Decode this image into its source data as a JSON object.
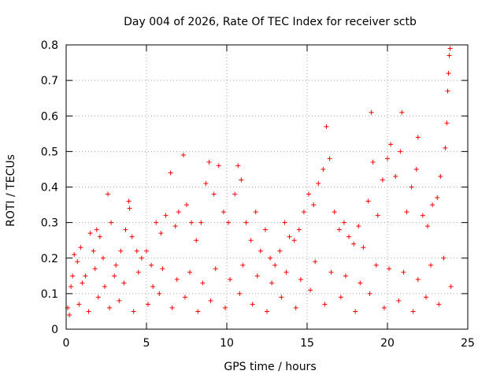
{
  "chart_data": {
    "type": "scatter",
    "title": "Day 004 of 2026, Rate Of TEC Index for receiver sctb",
    "xlabel": "GPS time / hours",
    "ylabel": "ROTI / TECUs",
    "xlim": [
      0,
      25
    ],
    "ylim": [
      0,
      0.8
    ],
    "xticks": [
      "0",
      "5",
      "10",
      "15",
      "20",
      "25"
    ],
    "yticks": [
      "0",
      "0.1",
      "0.2",
      "0.3",
      "0.4",
      "0.5",
      "0.6",
      "0.7",
      "0.8"
    ],
    "grid": true,
    "marker": "+",
    "color": "#ff0000",
    "series": [
      {
        "points": [
          [
            0.1,
            0.06
          ],
          [
            0.3,
            0.12
          ],
          [
            0.5,
            0.21
          ],
          [
            0.7,
            0.19
          ],
          [
            0.9,
            0.23
          ],
          [
            1.2,
            0.15
          ],
          [
            1.5,
            0.27
          ],
          [
            1.7,
            0.22
          ],
          [
            1.9,
            0.28
          ],
          [
            2.1,
            0.26
          ],
          [
            2.3,
            0.2
          ],
          [
            2.6,
            0.38
          ],
          [
            2.8,
            0.3
          ],
          [
            3.1,
            0.18
          ],
          [
            3.4,
            0.22
          ],
          [
            3.7,
            0.28
          ],
          [
            3.9,
            0.36
          ],
          [
            3.95,
            0.34
          ],
          [
            4.1,
            0.26
          ],
          [
            4.4,
            0.22
          ],
          [
            4.7,
            0.2
          ],
          [
            5.0,
            0.22
          ],
          [
            5.3,
            0.18
          ],
          [
            5.6,
            0.3
          ],
          [
            5.9,
            0.27
          ],
          [
            6.2,
            0.32
          ],
          [
            6.5,
            0.44
          ],
          [
            6.8,
            0.29
          ],
          [
            7.0,
            0.33
          ],
          [
            7.3,
            0.49
          ],
          [
            7.5,
            0.35
          ],
          [
            7.8,
            0.3
          ],
          [
            8.1,
            0.25
          ],
          [
            8.4,
            0.3
          ],
          [
            8.7,
            0.41
          ],
          [
            8.9,
            0.47
          ],
          [
            9.2,
            0.38
          ],
          [
            9.5,
            0.46
          ],
          [
            9.8,
            0.33
          ],
          [
            10.1,
            0.3
          ],
          [
            10.5,
            0.38
          ],
          [
            10.7,
            0.46
          ],
          [
            10.9,
            0.42
          ],
          [
            11.2,
            0.3
          ],
          [
            11.5,
            0.25
          ],
          [
            11.8,
            0.33
          ],
          [
            12.1,
            0.22
          ],
          [
            12.4,
            0.28
          ],
          [
            12.7,
            0.2
          ],
          [
            13.0,
            0.18
          ],
          [
            13.3,
            0.22
          ],
          [
            13.6,
            0.3
          ],
          [
            13.9,
            0.26
          ],
          [
            14.2,
            0.25
          ],
          [
            14.5,
            0.28
          ],
          [
            14.8,
            0.33
          ],
          [
            15.1,
            0.38
          ],
          [
            15.4,
            0.35
          ],
          [
            15.7,
            0.41
          ],
          [
            16.0,
            0.45
          ],
          [
            16.2,
            0.57
          ],
          [
            16.4,
            0.48
          ],
          [
            16.7,
            0.33
          ],
          [
            17.0,
            0.28
          ],
          [
            17.3,
            0.3
          ],
          [
            17.6,
            0.26
          ],
          [
            17.9,
            0.24
          ],
          [
            18.2,
            0.29
          ],
          [
            18.5,
            0.23
          ],
          [
            18.8,
            0.36
          ],
          [
            19.0,
            0.61
          ],
          [
            19.1,
            0.47
          ],
          [
            19.4,
            0.32
          ],
          [
            19.7,
            0.42
          ],
          [
            20.0,
            0.48
          ],
          [
            20.2,
            0.52
          ],
          [
            20.5,
            0.43
          ],
          [
            20.8,
            0.5
          ],
          [
            20.9,
            0.61
          ],
          [
            21.2,
            0.33
          ],
          [
            21.5,
            0.4
          ],
          [
            21.8,
            0.45
          ],
          [
            21.9,
            0.54
          ],
          [
            22.2,
            0.32
          ],
          [
            22.5,
            0.29
          ],
          [
            22.8,
            0.35
          ],
          [
            23.1,
            0.37
          ],
          [
            23.3,
            0.43
          ],
          [
            23.6,
            0.51
          ],
          [
            23.7,
            0.58
          ],
          [
            23.75,
            0.67
          ],
          [
            23.8,
            0.72
          ],
          [
            23.85,
            0.77
          ],
          [
            23.9,
            0.79
          ],
          [
            0.2,
            0.04
          ],
          [
            0.8,
            0.07
          ],
          [
            1.4,
            0.05
          ],
          [
            2.0,
            0.09
          ],
          [
            2.7,
            0.06
          ],
          [
            3.3,
            0.08
          ],
          [
            4.2,
            0.05
          ],
          [
            5.1,
            0.07
          ],
          [
            5.8,
            0.1
          ],
          [
            6.6,
            0.06
          ],
          [
            7.4,
            0.09
          ],
          [
            8.2,
            0.05
          ],
          [
            9.0,
            0.08
          ],
          [
            9.9,
            0.06
          ],
          [
            10.8,
            0.1
          ],
          [
            11.6,
            0.07
          ],
          [
            12.5,
            0.05
          ],
          [
            13.4,
            0.09
          ],
          [
            14.3,
            0.06
          ],
          [
            15.2,
            0.11
          ],
          [
            16.1,
            0.07
          ],
          [
            17.1,
            0.09
          ],
          [
            18.0,
            0.05
          ],
          [
            18.9,
            0.1
          ],
          [
            19.8,
            0.06
          ],
          [
            20.7,
            0.08
          ],
          [
            21.6,
            0.05
          ],
          [
            22.4,
            0.09
          ],
          [
            23.2,
            0.07
          ],
          [
            23.95,
            0.12
          ],
          [
            0.4,
            0.15
          ],
          [
            1.0,
            0.13
          ],
          [
            1.8,
            0.17
          ],
          [
            2.4,
            0.12
          ],
          [
            3.0,
            0.15
          ],
          [
            3.6,
            0.13
          ],
          [
            4.5,
            0.16
          ],
          [
            5.4,
            0.12
          ],
          [
            6.0,
            0.17
          ],
          [
            6.9,
            0.14
          ],
          [
            7.7,
            0.16
          ],
          [
            8.5,
            0.13
          ],
          [
            9.3,
            0.17
          ],
          [
            10.2,
            0.14
          ],
          [
            11.0,
            0.18
          ],
          [
            11.9,
            0.15
          ],
          [
            12.8,
            0.13
          ],
          [
            13.7,
            0.16
          ],
          [
            14.6,
            0.14
          ],
          [
            15.5,
            0.19
          ],
          [
            16.5,
            0.16
          ],
          [
            17.4,
            0.15
          ],
          [
            18.3,
            0.13
          ],
          [
            19.3,
            0.18
          ],
          [
            20.1,
            0.17
          ],
          [
            21.0,
            0.16
          ],
          [
            21.9,
            0.14
          ],
          [
            22.7,
            0.18
          ],
          [
            23.5,
            0.2
          ]
        ]
      }
    ]
  }
}
